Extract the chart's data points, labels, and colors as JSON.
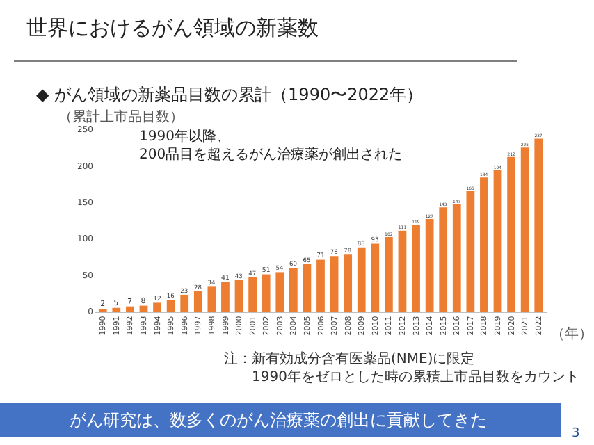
{
  "chart_data": {
    "type": "bar",
    "title": "世界におけるがん領域の新薬数",
    "subtitle": "◆ がん領域の新薬品目数の累計（1990〜2022年）",
    "ylabel": "（累計上市品目数）",
    "xlabel": "（年）",
    "categories": [
      "1990",
      "1991",
      "1992",
      "1993",
      "1994",
      "1995",
      "1996",
      "1997",
      "1998",
      "1999",
      "2000",
      "2001",
      "2002",
      "2003",
      "2004",
      "2005",
      "2006",
      "2007",
      "2008",
      "2009",
      "2010",
      "2011",
      "2012",
      "2013",
      "2014",
      "2015",
      "2016",
      "2017",
      "2018",
      "2019",
      "2020",
      "2021",
      "2022"
    ],
    "values": [
      2,
      5,
      7,
      8,
      12,
      16,
      23,
      28,
      34,
      41,
      43,
      47,
      51,
      54,
      60,
      65,
      71,
      76,
      78,
      88,
      93,
      102,
      111,
      119,
      127,
      143,
      147,
      165,
      184,
      194,
      212,
      225,
      237
    ],
    "color": "#ed7d31",
    "ylim": [
      0,
      250
    ],
    "yticks": [
      0,
      50,
      100,
      150,
      200,
      250
    ],
    "grid": false,
    "legend": false,
    "data_labels": true,
    "annotations": [
      "1990年以降、\n200品目を超えるがん治療薬が創出された",
      "注：新有効成分含有医薬品(NME)に限定\n　　1990年をゼロとした時の累積上市品目数をカウント",
      "がん研究は、数多くのがん治療薬の創出に貢献してきた",
      "3"
    ]
  }
}
